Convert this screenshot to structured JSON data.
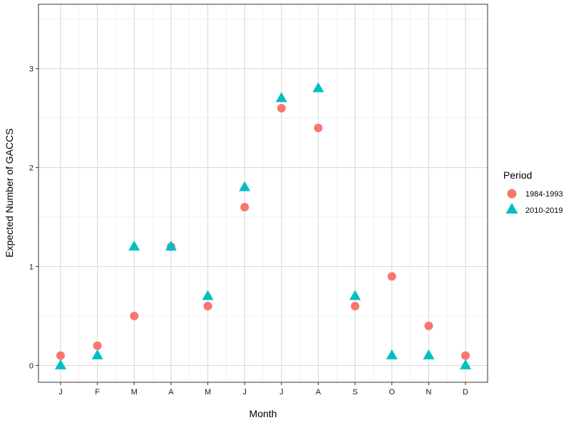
{
  "chart_data": {
    "type": "scatter",
    "title": "",
    "xlabel": "Month",
    "ylabel": "Expected Number of GACCS",
    "categories": [
      "J",
      "F",
      "M",
      "A",
      "M",
      "J",
      "J",
      "A",
      "S",
      "O",
      "N",
      "D"
    ],
    "yticks": [
      0,
      1,
      2,
      3
    ],
    "ylim": [
      -0.17,
      3.65
    ],
    "grid": true,
    "legend": {
      "title": "Period",
      "position": "right"
    },
    "series": [
      {
        "name": "1984-1993",
        "marker": "circle",
        "color": "#F8766D",
        "values": [
          0.1,
          0.2,
          0.5,
          1.2,
          0.6,
          1.6,
          2.6,
          2.4,
          0.6,
          0.9,
          0.4,
          0.1
        ]
      },
      {
        "name": "2010-2019",
        "marker": "triangle",
        "color": "#00BFC4",
        "values": [
          0.0,
          0.1,
          1.2,
          1.2,
          0.7,
          1.8,
          2.7,
          2.8,
          0.7,
          0.1,
          0.1,
          0.0
        ]
      }
    ]
  }
}
